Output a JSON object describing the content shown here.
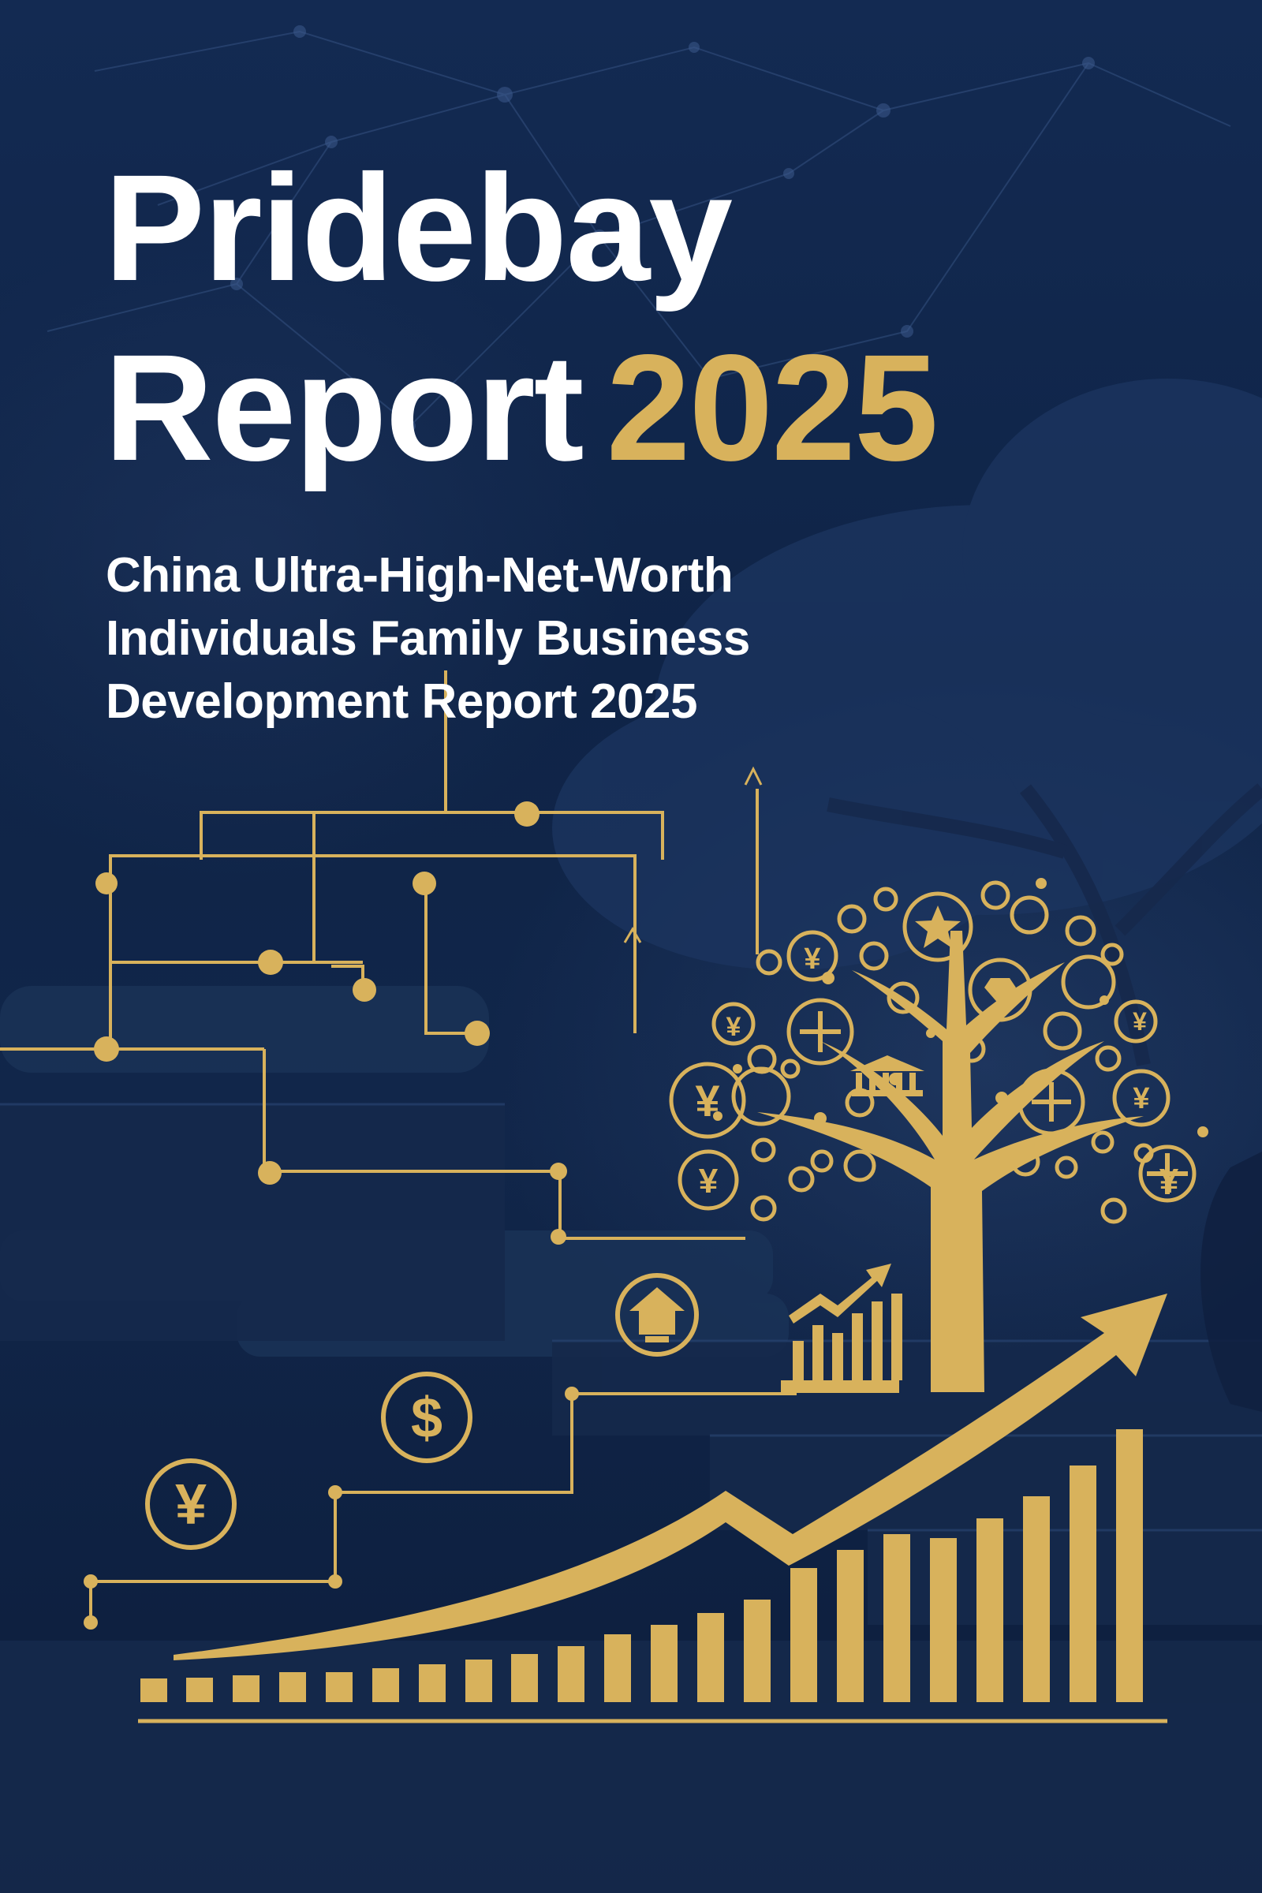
{
  "title": {
    "line1": "Pridebay",
    "line2_word": "Report",
    "line2_year": "2025"
  },
  "subtitle": {
    "line1": "China Ultra-High-Net-Worth",
    "line2": "Individuals Family Business",
    "line3": "Development Report 2025"
  },
  "icons": {
    "coin_yuan": "¥",
    "coin_dollar": "$"
  },
  "colors": {
    "background": "#0d1f3f",
    "gold": "#d8b25c",
    "text": "#ffffff"
  }
}
